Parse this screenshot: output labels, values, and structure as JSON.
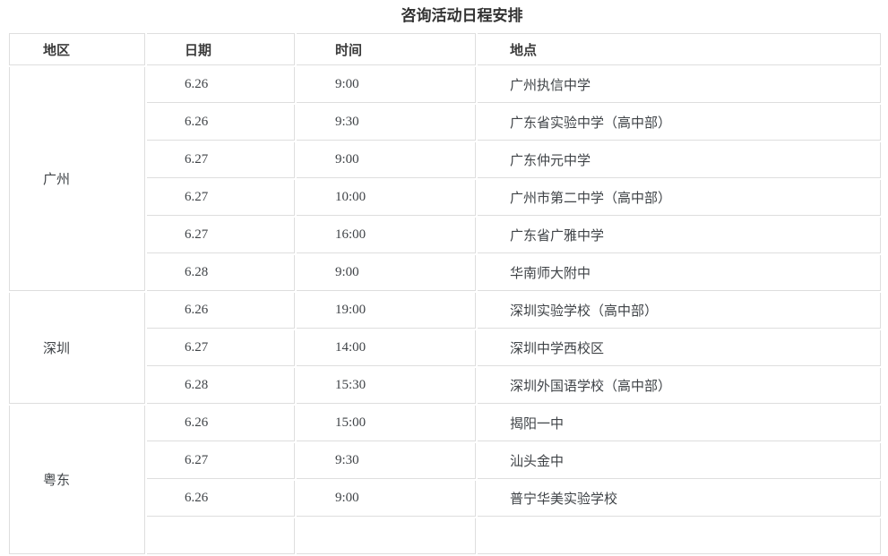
{
  "title": "咨询活动日程安排",
  "table": {
    "headers": [
      "地区",
      "日期",
      "时间",
      "地点"
    ],
    "groups": [
      {
        "region": "广州",
        "rows": [
          {
            "date": "6.26",
            "time": "9:00",
            "location": "广州执信中学"
          },
          {
            "date": "6.26",
            "time": "9:30",
            "location": "广东省实验中学（高中部）"
          },
          {
            "date": "6.27",
            "time": "9:00",
            "location": "广东仲元中学"
          },
          {
            "date": "6.27",
            "time": "10:00",
            "location": "广州市第二中学（高中部）"
          },
          {
            "date": "6.27",
            "time": "16:00",
            "location": "广东省广雅中学"
          },
          {
            "date": "6.28",
            "time": "9:00",
            "location": "华南师大附中"
          }
        ]
      },
      {
        "region": "深圳",
        "rows": [
          {
            "date": "6.26",
            "time": "19:00",
            "location": "深圳实验学校（高中部）"
          },
          {
            "date": "6.27",
            "time": "14:00",
            "location": "深圳中学西校区"
          },
          {
            "date": "6.28",
            "time": "15:30",
            "location": "深圳外国语学校（高中部）"
          }
        ]
      },
      {
        "region": "粤东",
        "rows": [
          {
            "date": "6.26",
            "time": "15:00",
            "location": "揭阳一中"
          },
          {
            "date": "6.27",
            "time": "9:30",
            "location": "汕头金中"
          },
          {
            "date": "6.26",
            "time": "9:00",
            "location": "普宁华美实验学校"
          },
          {
            "date": "",
            "time": "",
            "location": ""
          }
        ]
      }
    ]
  },
  "colors": {
    "background": "#ffffff",
    "border": "#dedede",
    "text": "#3f4347",
    "title_text": "#333333"
  }
}
